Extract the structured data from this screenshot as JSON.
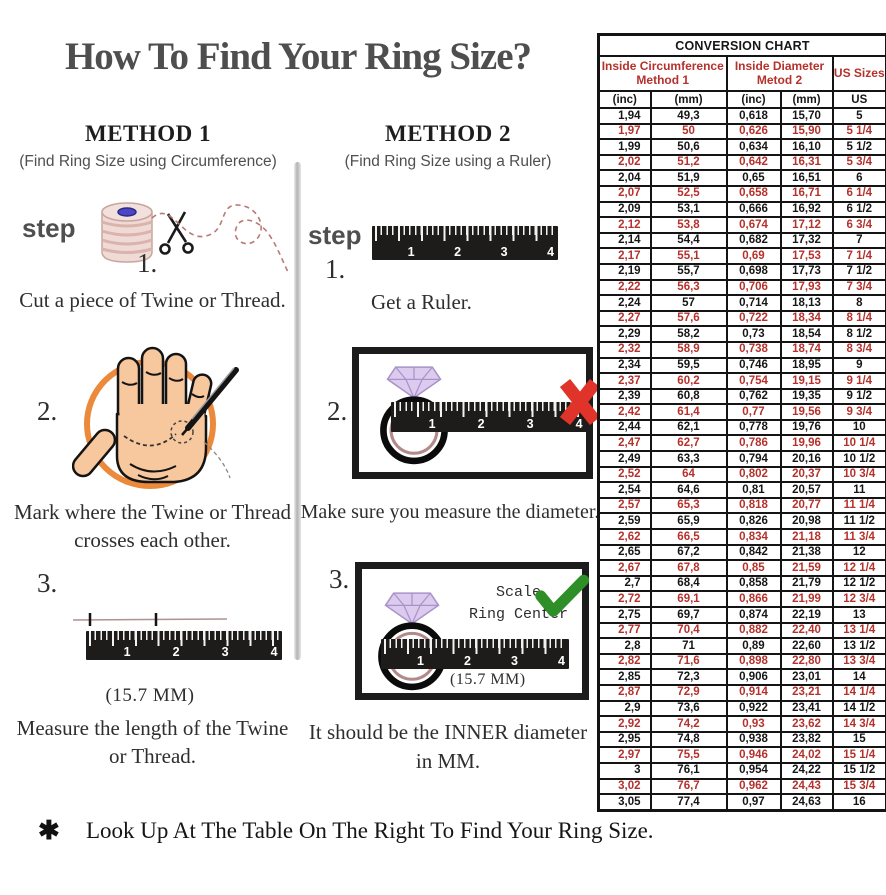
{
  "page": {
    "title": "How To Find Your Ring Size?",
    "footnote_marker": "✱",
    "footnote": "Look Up At The Table On The Right To Find Your Ring Size."
  },
  "method1": {
    "heading": "METHOD 1",
    "subtitle": "(Find Ring Size using Circumference)",
    "step_label": "step",
    "step1_num": "1.",
    "step1_caption": "Cut a piece of Twine or Thread.",
    "step2_num": "2.",
    "step2_caption": "Mark where the Twine or Thread crosses each other.",
    "step3_num": "3.",
    "step3_measurement": "(15.7 MM)",
    "step3_caption": "Measure the length of the Twine or Thread."
  },
  "method2": {
    "heading": "METHOD 2",
    "subtitle": "(Find Ring Size using a Ruler)",
    "step_label": "step",
    "step1_num": "1.",
    "step1_caption": "Get a Ruler.",
    "step2_num": "2.",
    "step2_caption": "Make sure you measure the diameter.",
    "step3_num": "3.",
    "step3_scale_line1": "Scale",
    "step3_scale_line2": "Ring Center",
    "step3_measurement": "(15.7 MM)",
    "step3_caption": "It should be the INNER diameter in MM."
  },
  "ruler_numbers": [
    "1",
    "2",
    "3",
    "4"
  ],
  "colors": {
    "table_red": "#b5312c",
    "x_red": "#e0342b",
    "check_green": "#2e8f28",
    "circle_orange": "#ec8a3c"
  },
  "table": {
    "title": "CONVERSION CHART",
    "group1_line1": "Inside Circumference",
    "group1_line2": "Method 1",
    "group2_line1": "Inside Diameter",
    "group2_line2": "Metod 2",
    "group3": "US Sizes",
    "sub_headers": [
      "(inc)",
      "(mm)",
      "(inc)",
      "(mm)",
      "US"
    ],
    "rows": [
      [
        "1,94",
        "49,3",
        "0,618",
        "15,70",
        "5"
      ],
      [
        "1,97",
        "50",
        "0,626",
        "15,90",
        "5 1/4"
      ],
      [
        "1,99",
        "50,6",
        "0,634",
        "16,10",
        "5 1/2"
      ],
      [
        "2,02",
        "51,2",
        "0,642",
        "16,31",
        "5 3/4"
      ],
      [
        "2,04",
        "51,9",
        "0,65",
        "16,51",
        "6"
      ],
      [
        "2,07",
        "52,5",
        "0,658",
        "16,71",
        "6 1/4"
      ],
      [
        "2,09",
        "53,1",
        "0,666",
        "16,92",
        "6 1/2"
      ],
      [
        "2,12",
        "53,8",
        "0,674",
        "17,12",
        "6 3/4"
      ],
      [
        "2,14",
        "54,4",
        "0,682",
        "17,32",
        "7"
      ],
      [
        "2,17",
        "55,1",
        "0,69",
        "17,53",
        "7 1/4"
      ],
      [
        "2,19",
        "55,7",
        "0,698",
        "17,73",
        "7 1/2"
      ],
      [
        "2,22",
        "56,3",
        "0,706",
        "17,93",
        "7 3/4"
      ],
      [
        "2,24",
        "57",
        "0,714",
        "18,13",
        "8"
      ],
      [
        "2,27",
        "57,6",
        "0,722",
        "18,34",
        "8 1/4"
      ],
      [
        "2,29",
        "58,2",
        "0,73",
        "18,54",
        "8 1/2"
      ],
      [
        "2,32",
        "58,9",
        "0,738",
        "18,74",
        "8 3/4"
      ],
      [
        "2,34",
        "59,5",
        "0,746",
        "18,95",
        "9"
      ],
      [
        "2,37",
        "60,2",
        "0,754",
        "19,15",
        "9 1/4"
      ],
      [
        "2,39",
        "60,8",
        "0,762",
        "19,35",
        "9 1/2"
      ],
      [
        "2,42",
        "61,4",
        "0,77",
        "19,56",
        "9 3/4"
      ],
      [
        "2,44",
        "62,1",
        "0,778",
        "19,76",
        "10"
      ],
      [
        "2,47",
        "62,7",
        "0,786",
        "19,96",
        "10 1/4"
      ],
      [
        "2,49",
        "63,3",
        "0,794",
        "20,16",
        "10 1/2"
      ],
      [
        "2,52",
        "64",
        "0,802",
        "20,37",
        "10 3/4"
      ],
      [
        "2,54",
        "64,6",
        "0,81",
        "20,57",
        "11"
      ],
      [
        "2,57",
        "65,3",
        "0,818",
        "20,77",
        "11 1/4"
      ],
      [
        "2,59",
        "65,9",
        "0,826",
        "20,98",
        "11 1/2"
      ],
      [
        "2,62",
        "66,5",
        "0,834",
        "21,18",
        "11 3/4"
      ],
      [
        "2,65",
        "67,2",
        "0,842",
        "21,38",
        "12"
      ],
      [
        "2,67",
        "67,8",
        "0,85",
        "21,59",
        "12 1/4"
      ],
      [
        "2,7",
        "68,4",
        "0,858",
        "21,79",
        "12 1/2"
      ],
      [
        "2,72",
        "69,1",
        "0,866",
        "21,99",
        "12 3/4"
      ],
      [
        "2,75",
        "69,7",
        "0,874",
        "22,19",
        "13"
      ],
      [
        "2,77",
        "70,4",
        "0,882",
        "22,40",
        "13 1/4"
      ],
      [
        "2,8",
        "71",
        "0,89",
        "22,60",
        "13 1/2"
      ],
      [
        "2,82",
        "71,6",
        "0,898",
        "22,80",
        "13 3/4"
      ],
      [
        "2,85",
        "72,3",
        "0,906",
        "23,01",
        "14"
      ],
      [
        "2,87",
        "72,9",
        "0,914",
        "23,21",
        "14 1/4"
      ],
      [
        "2,9",
        "73,6",
        "0,922",
        "23,41",
        "14 1/2"
      ],
      [
        "2,92",
        "74,2",
        "0,93",
        "23,62",
        "14 3/4"
      ],
      [
        "2,95",
        "74,8",
        "0,938",
        "23,82",
        "15"
      ],
      [
        "2,97",
        "75,5",
        "0,946",
        "24,02",
        "15 1/4"
      ],
      [
        "3",
        "76,1",
        "0,954",
        "24,22",
        "15 1/2"
      ],
      [
        "3,02",
        "76,7",
        "0,962",
        "24,43",
        "15 3/4"
      ],
      [
        "3,05",
        "77,4",
        "0,97",
        "24,63",
        "16"
      ]
    ]
  }
}
